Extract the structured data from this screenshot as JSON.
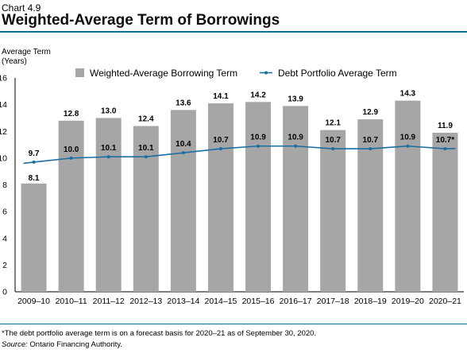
{
  "header": {
    "chart_number": "Chart 4.9",
    "title": "Weighted-Average Term of Borrowings"
  },
  "footnote": "*The debt portfolio average term is on a forecast basis for 2020–21 as of September 30, 2020.",
  "source": {
    "label": "Source:",
    "name": "Ontario Financing Authority."
  },
  "chart_data": {
    "type": "bar",
    "title": "Weighted-Average Term of Borrowings",
    "ylabel_lines": [
      "Average Term",
      "(Years)"
    ],
    "xlabel": "",
    "ylim": [
      0,
      16
    ],
    "yticks": [
      0,
      2,
      4,
      6,
      8,
      10,
      12,
      14,
      16
    ],
    "grid": false,
    "legend_position": "top",
    "categories": [
      "2009–10",
      "2010–11",
      "2011–12",
      "2012–13",
      "2013–14",
      "2014–15",
      "2015–16",
      "2016–17",
      "2017–18",
      "2018–19",
      "2019–20",
      "2020–21"
    ],
    "series": [
      {
        "name": "Weighted-Average Borrowing Term",
        "kind": "bar",
        "color": "#a6a6a6",
        "values": [
          8.1,
          12.8,
          13.0,
          12.4,
          13.6,
          14.1,
          14.2,
          13.9,
          12.1,
          12.9,
          14.3,
          11.9
        ],
        "labels": [
          "8.1",
          "12.8",
          "13.0",
          "12.4",
          "13.6",
          "14.1",
          "14.2",
          "13.9",
          "12.1",
          "12.9",
          "14.3",
          "11.9"
        ]
      },
      {
        "name": "Debt Portfolio Average Term",
        "kind": "line",
        "color": "#1a6fa0",
        "values": [
          9.7,
          10.0,
          10.1,
          10.1,
          10.4,
          10.7,
          10.9,
          10.9,
          10.7,
          10.7,
          10.9,
          10.7
        ],
        "labels": [
          "9.7",
          "10.0",
          "10.1",
          "10.1",
          "10.4",
          "10.7",
          "10.9",
          "10.9",
          "10.7",
          "10.7",
          "10.9",
          "10.7*"
        ]
      }
    ]
  }
}
